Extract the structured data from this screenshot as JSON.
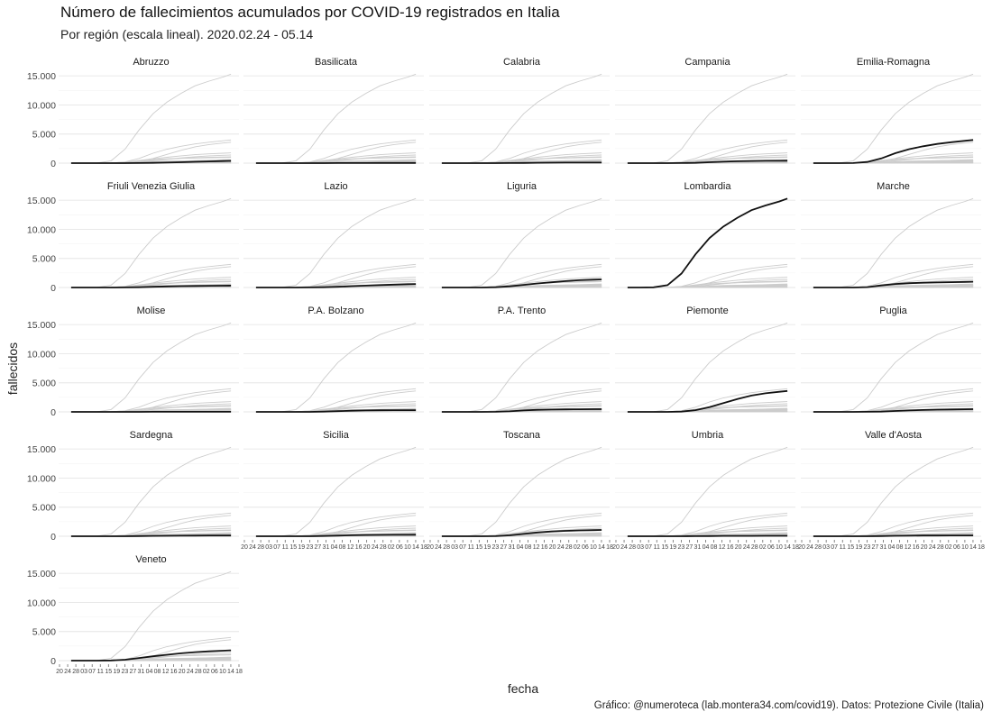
{
  "title": "Número de fallecimientos acumulados por COVID-19 registrados en Italia",
  "subtitle": "Por región (escala lineal). 2020.02.24 - 05.14",
  "caption": "Gráfico: @numeroteca (lab.montera34.com/covid19). Datos: Protezione Civile (Italia)",
  "chart_data": {
    "type": "line",
    "facet": "small-multiples",
    "xlabel": "fecha",
    "ylabel": "fallecidos",
    "xlim": [
      "2020-02-20",
      "2020-05-18"
    ],
    "ylim": [
      0,
      15500
    ],
    "y_ticks": [
      0,
      5000,
      10000,
      15000
    ],
    "y_tick_labels": [
      "0",
      "5.000",
      "10.000",
      "15.000"
    ],
    "x_tick_labels": [
      "20",
      "24",
      "28",
      "03",
      "07",
      "11",
      "15",
      "19",
      "23",
      "27",
      "31",
      "04",
      "08",
      "12",
      "16",
      "20",
      "24",
      "28",
      "02",
      "06",
      "10",
      "14",
      "18"
    ],
    "x_dates": [
      "2020-02-24",
      "2020-03-01",
      "2020-03-08",
      "2020-03-15",
      "2020-03-22",
      "2020-03-29",
      "2020-04-05",
      "2020-04-12",
      "2020-04-19",
      "2020-04-26",
      "2020-05-03",
      "2020-05-10",
      "2020-05-14"
    ],
    "grid": true,
    "legend": "none",
    "colors": {
      "highlight": "#111111",
      "other_regions": "#cccccc"
    },
    "series": [
      {
        "name": "Abruzzo",
        "values": [
          0,
          0,
          0,
          0,
          0,
          10,
          45,
          90,
          150,
          230,
          300,
          350,
          380
        ]
      },
      {
        "name": "Basilicata",
        "values": [
          0,
          0,
          0,
          0,
          0,
          2,
          8,
          15,
          20,
          24,
          26,
          27,
          27
        ]
      },
      {
        "name": "Calabria",
        "values": [
          0,
          0,
          0,
          0,
          2,
          10,
          35,
          60,
          80,
          88,
          92,
          95,
          96
        ]
      },
      {
        "name": "Campania",
        "values": [
          0,
          0,
          0,
          1,
          10,
          50,
          150,
          250,
          320,
          370,
          400,
          410,
          415
        ]
      },
      {
        "name": "Emilia-Romagna",
        "values": [
          0,
          0,
          2,
          20,
          200,
          800,
          1700,
          2400,
          2900,
          3300,
          3600,
          3850,
          3980
        ]
      },
      {
        "name": "Friuli Venezia Giulia",
        "values": [
          0,
          0,
          0,
          1,
          10,
          50,
          120,
          190,
          240,
          270,
          300,
          310,
          320
        ]
      },
      {
        "name": "Lazio",
        "values": [
          0,
          0,
          0,
          1,
          10,
          50,
          130,
          230,
          330,
          420,
          500,
          570,
          610
        ]
      },
      {
        "name": "Liguria",
        "values": [
          0,
          0,
          0,
          5,
          40,
          200,
          450,
          700,
          900,
          1100,
          1250,
          1350,
          1400
        ]
      },
      {
        "name": "Lombardia",
        "values": [
          0,
          3,
          25,
          400,
          2400,
          5700,
          8500,
          10500,
          12000,
          13300,
          14100,
          14800,
          15300
        ]
      },
      {
        "name": "Marche",
        "values": [
          0,
          0,
          0,
          3,
          60,
          350,
          600,
          750,
          820,
          870,
          920,
          960,
          985
        ]
      },
      {
        "name": "Molise",
        "values": [
          0,
          0,
          0,
          0,
          0,
          3,
          10,
          15,
          19,
          21,
          22,
          22,
          22
        ]
      },
      {
        "name": "P.A. Bolzano",
        "values": [
          0,
          0,
          0,
          0,
          5,
          40,
          120,
          200,
          250,
          280,
          290,
          292,
          293
        ]
      },
      {
        "name": "P.A. Trento",
        "values": [
          0,
          0,
          0,
          0,
          10,
          100,
          250,
          350,
          400,
          430,
          450,
          460,
          465
        ]
      },
      {
        "name": "Piemonte",
        "values": [
          0,
          0,
          0,
          5,
          50,
          300,
          800,
          1500,
          2200,
          2800,
          3200,
          3450,
          3600
        ]
      },
      {
        "name": "Puglia",
        "values": [
          0,
          0,
          0,
          1,
          10,
          50,
          150,
          250,
          330,
          380,
          420,
          450,
          465
        ]
      },
      {
        "name": "Sardegna",
        "values": [
          0,
          0,
          0,
          0,
          5,
          30,
          60,
          85,
          100,
          110,
          118,
          122,
          124
        ]
      },
      {
        "name": "Sicilia",
        "values": [
          0,
          0,
          0,
          0,
          5,
          40,
          110,
          170,
          210,
          235,
          245,
          255,
          260
        ]
      },
      {
        "name": "Toscana",
        "values": [
          0,
          0,
          0,
          1,
          20,
          150,
          400,
          650,
          820,
          930,
          1000,
          1050,
          1080
        ]
      },
      {
        "name": "Umbria",
        "values": [
          0,
          0,
          0,
          0,
          2,
          15,
          35,
          55,
          63,
          68,
          70,
          71,
          72
        ]
      },
      {
        "name": "Valle d'Aosta",
        "values": [
          0,
          0,
          0,
          0,
          5,
          30,
          70,
          100,
          120,
          130,
          138,
          142,
          143
        ]
      },
      {
        "name": "Veneto",
        "values": [
          0,
          1,
          5,
          30,
          150,
          450,
          750,
          1000,
          1250,
          1450,
          1600,
          1700,
          1760
        ]
      }
    ]
  }
}
